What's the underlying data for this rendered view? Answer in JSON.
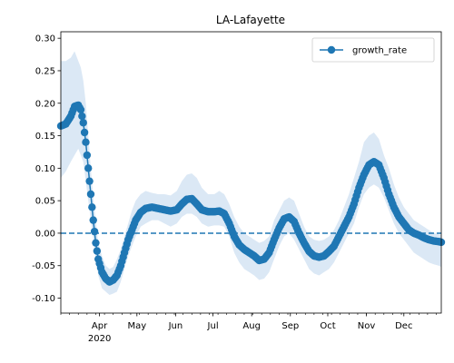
{
  "chart_data": {
    "type": "line",
    "title": "LA-Lafayette",
    "xlabel": "",
    "ylabel": "",
    "x_range": [
      "2020-03-01",
      "2020-12-31"
    ],
    "ylim": [
      -0.123,
      0.31
    ],
    "x_ticks": [
      {
        "date": "2020-04-01",
        "label": "Apr",
        "sublabel": "2020"
      },
      {
        "date": "2020-05-01",
        "label": "May"
      },
      {
        "date": "2020-06-01",
        "label": "Jun"
      },
      {
        "date": "2020-07-01",
        "label": "Jul"
      },
      {
        "date": "2020-08-01",
        "label": "Aug"
      },
      {
        "date": "2020-09-01",
        "label": "Sep"
      },
      {
        "date": "2020-10-01",
        "label": "Oct"
      },
      {
        "date": "2020-11-01",
        "label": "Nov"
      },
      {
        "date": "2020-12-01",
        "label": "Dec"
      }
    ],
    "y_ticks": [
      "0.30",
      "0.25",
      "0.20",
      "0.15",
      "0.10",
      "0.05",
      "0.00",
      "-0.05",
      "-0.10"
    ],
    "reference_line": {
      "y": 0.0,
      "style": "dashed",
      "color": "#1f77b4"
    },
    "legend": {
      "position": "top-right",
      "entries": [
        "growth_rate"
      ]
    },
    "series": [
      {
        "name": "growth_rate",
        "color": "#1f77b4",
        "marker": "circle",
        "band_color": "#dbe8f5",
        "points": [
          [
            "2020-03-01",
            0.165,
            0.085,
            0.265
          ],
          [
            "2020-03-05",
            0.168,
            0.095,
            0.265
          ],
          [
            "2020-03-09",
            0.18,
            0.11,
            0.27
          ],
          [
            "2020-03-12",
            0.195,
            0.12,
            0.28
          ],
          [
            "2020-03-15",
            0.197,
            0.13,
            0.265
          ],
          [
            "2020-03-17",
            0.19,
            0.12,
            0.255
          ],
          [
            "2020-03-19",
            0.17,
            0.11,
            0.235
          ],
          [
            "2020-03-21",
            0.14,
            0.08,
            0.2
          ],
          [
            "2020-03-23",
            0.1,
            0.05,
            0.15
          ],
          [
            "2020-03-25",
            0.06,
            0.02,
            0.1
          ],
          [
            "2020-03-27",
            0.02,
            -0.01,
            0.055
          ],
          [
            "2020-03-29",
            -0.015,
            -0.04,
            0.02
          ],
          [
            "2020-03-31",
            -0.04,
            -0.065,
            -0.015
          ],
          [
            "2020-04-03",
            -0.06,
            -0.085,
            -0.035
          ],
          [
            "2020-04-06",
            -0.07,
            -0.09,
            -0.05
          ],
          [
            "2020-04-09",
            -0.075,
            -0.095,
            -0.055
          ],
          [
            "2020-04-12",
            -0.072,
            -0.093,
            -0.052
          ],
          [
            "2020-04-15",
            -0.065,
            -0.09,
            -0.04
          ],
          [
            "2020-04-18",
            -0.05,
            -0.075,
            -0.025
          ],
          [
            "2020-04-21",
            -0.03,
            -0.055,
            -0.005
          ],
          [
            "2020-04-24",
            -0.01,
            -0.035,
            0.015
          ],
          [
            "2020-04-27",
            0.005,
            -0.02,
            0.035
          ],
          [
            "2020-04-30",
            0.02,
            -0.005,
            0.05
          ],
          [
            "2020-05-04",
            0.032,
            0.01,
            0.06
          ],
          [
            "2020-05-08",
            0.038,
            0.015,
            0.065
          ],
          [
            "2020-05-13",
            0.04,
            0.02,
            0.062
          ],
          [
            "2020-05-18",
            0.038,
            0.02,
            0.06
          ],
          [
            "2020-05-23",
            0.036,
            0.015,
            0.06
          ],
          [
            "2020-05-28",
            0.034,
            0.01,
            0.058
          ],
          [
            "2020-06-02",
            0.036,
            0.015,
            0.065
          ],
          [
            "2020-06-06",
            0.045,
            0.025,
            0.08
          ],
          [
            "2020-06-10",
            0.052,
            0.03,
            0.09
          ],
          [
            "2020-06-14",
            0.053,
            0.03,
            0.092
          ],
          [
            "2020-06-18",
            0.045,
            0.025,
            0.085
          ],
          [
            "2020-06-22",
            0.036,
            0.015,
            0.07
          ],
          [
            "2020-06-27",
            0.033,
            0.01,
            0.06
          ],
          [
            "2020-07-02",
            0.033,
            0.012,
            0.06
          ],
          [
            "2020-07-06",
            0.034,
            0.012,
            0.065
          ],
          [
            "2020-07-10",
            0.03,
            0.01,
            0.06
          ],
          [
            "2020-07-14",
            0.015,
            -0.005,
            0.045
          ],
          [
            "2020-07-18",
            -0.005,
            -0.03,
            0.025
          ],
          [
            "2020-07-22",
            -0.018,
            -0.045,
            0.01
          ],
          [
            "2020-07-26",
            -0.025,
            -0.055,
            0.0
          ],
          [
            "2020-07-30",
            -0.03,
            -0.06,
            -0.005
          ],
          [
            "2020-08-03",
            -0.035,
            -0.065,
            -0.01
          ],
          [
            "2020-08-07",
            -0.042,
            -0.072,
            -0.015
          ],
          [
            "2020-08-11",
            -0.04,
            -0.07,
            -0.012
          ],
          [
            "2020-08-15",
            -0.03,
            -0.06,
            -0.005
          ],
          [
            "2020-08-19",
            -0.01,
            -0.04,
            0.02
          ],
          [
            "2020-08-23",
            0.008,
            -0.02,
            0.035
          ],
          [
            "2020-08-27",
            0.022,
            -0.005,
            0.05
          ],
          [
            "2020-08-31",
            0.025,
            0.0,
            0.055
          ],
          [
            "2020-09-04",
            0.018,
            -0.01,
            0.05
          ],
          [
            "2020-09-08",
            0.0,
            -0.025,
            0.03
          ],
          [
            "2020-09-12",
            -0.015,
            -0.04,
            0.01
          ],
          [
            "2020-09-16",
            -0.028,
            -0.055,
            -0.005
          ],
          [
            "2020-09-20",
            -0.035,
            -0.062,
            -0.01
          ],
          [
            "2020-09-24",
            -0.037,
            -0.065,
            -0.012
          ],
          [
            "2020-09-28",
            -0.035,
            -0.06,
            -0.01
          ],
          [
            "2020-10-02",
            -0.028,
            -0.055,
            -0.005
          ],
          [
            "2020-10-06",
            -0.02,
            -0.045,
            0.005
          ],
          [
            "2020-10-10",
            -0.005,
            -0.03,
            0.02
          ],
          [
            "2020-10-14",
            0.01,
            -0.015,
            0.04
          ],
          [
            "2020-10-18",
            0.025,
            0.0,
            0.06
          ],
          [
            "2020-10-22",
            0.045,
            0.015,
            0.085
          ],
          [
            "2020-10-26",
            0.07,
            0.04,
            0.11
          ],
          [
            "2020-10-30",
            0.09,
            0.06,
            0.14
          ],
          [
            "2020-11-03",
            0.105,
            0.07,
            0.15
          ],
          [
            "2020-11-07",
            0.11,
            0.075,
            0.155
          ],
          [
            "2020-11-11",
            0.105,
            0.07,
            0.145
          ],
          [
            "2020-11-15",
            0.085,
            0.055,
            0.12
          ],
          [
            "2020-11-19",
            0.06,
            0.035,
            0.1
          ],
          [
            "2020-11-23",
            0.04,
            0.015,
            0.075
          ],
          [
            "2020-11-27",
            0.025,
            0.0,
            0.055
          ],
          [
            "2020-12-01",
            0.015,
            -0.01,
            0.04
          ],
          [
            "2020-12-05",
            0.005,
            -0.02,
            0.03
          ],
          [
            "2020-12-09",
            0.0,
            -0.03,
            0.02
          ],
          [
            "2020-12-13",
            -0.003,
            -0.035,
            0.015
          ],
          [
            "2020-12-17",
            -0.007,
            -0.04,
            0.01
          ],
          [
            "2020-12-21",
            -0.01,
            -0.045,
            0.005
          ],
          [
            "2020-12-25",
            -0.012,
            -0.048,
            0.0
          ],
          [
            "2020-12-29",
            -0.013,
            -0.05,
            -0.002
          ],
          [
            "2020-12-31",
            -0.014,
            -0.052,
            -0.003
          ]
        ]
      }
    ]
  }
}
